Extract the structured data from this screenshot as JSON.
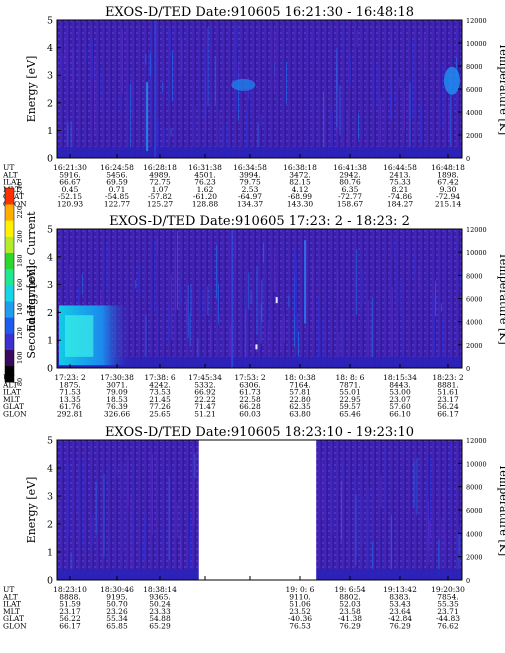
{
  "colorbar": {
    "label": "Second Harmonic Current",
    "ticks": [
      "240",
      "220",
      "200",
      "180",
      "160",
      "140",
      "120",
      "100",
      "80"
    ],
    "colors": [
      "#000000",
      "#3a0a5e",
      "#3d2fd0",
      "#1d5cf0",
      "#1f9ef0",
      "#15d6e6",
      "#1fe890",
      "#2cd82c",
      "#b4ec28",
      "#fff000",
      "#ffae00",
      "#ff3000"
    ]
  },
  "chart_data": [
    {
      "type": "heatmap",
      "title": "EXOS-D/TED   Date:910605   16:21:30 - 16:48:18",
      "ylabel": "Energy [eV]",
      "y2label": "Temperature [K]",
      "ylim": [
        0,
        5
      ],
      "y2lim": [
        0,
        12000
      ],
      "yticks": [
        "0",
        "1",
        "2",
        "3",
        "4",
        "5"
      ],
      "y2ticks": [
        "0",
        "2000",
        "4000",
        "6000",
        "8000",
        "10000",
        "12000"
      ],
      "table": {
        "rows": [
          "UT",
          "ALT",
          "ILAT",
          "MLT",
          "GLAT",
          "GLON"
        ],
        "columns": [
          [
            "16:21:30",
            "5916.",
            "66.67",
            "0.45",
            "-52.15",
            "120.93"
          ],
          [
            "16:24:58",
            "5456.",
            "69.59",
            "0.71",
            "-54.85",
            "122.77"
          ],
          [
            "16:28:18",
            "4989.",
            "72.75",
            "1.07",
            "-57.82",
            "125.27"
          ],
          [
            "16:31:38",
            "4501.",
            "76.23",
            "1.62",
            "-61.20",
            "128.88"
          ],
          [
            "16:34:58",
            "3994.",
            "79.75",
            "2.53",
            "-64.97",
            "134.37"
          ],
          [
            "16:38:18",
            "3472.",
            "82.15",
            "4.12",
            "-68.99",
            "143.30"
          ],
          [
            "16:41:38",
            "2942.",
            "80.76",
            "6.35",
            "-72.77",
            "158.67"
          ],
          [
            "16:44:58",
            "2413.",
            "75.33",
            "8.21",
            "-74.86",
            "184.27"
          ],
          [
            "16:48:18",
            "1898.",
            "67.42",
            "9.30",
            "-72.94",
            "215.14"
          ]
        ]
      }
    },
    {
      "type": "heatmap",
      "title": "EXOS-D/TED   Date:910605   17:23: 2 - 18:23: 2",
      "ylabel": "Energy [eV]",
      "y2label": "Temperature [K]",
      "ylim": [
        0,
        5
      ],
      "y2lim": [
        0,
        12000
      ],
      "yticks": [
        "0",
        "1",
        "2",
        "3",
        "4",
        "5"
      ],
      "y2ticks": [
        "0",
        "2000",
        "4000",
        "6000",
        "8000",
        "10000",
        "12000"
      ],
      "table": {
        "rows": [
          "UT",
          "ALT",
          "ILAT",
          "MLT",
          "GLAT",
          "GLON"
        ],
        "columns": [
          [
            "17:23: 2",
            "1875.",
            "71.53",
            "13.35",
            "61.76",
            "292.81"
          ],
          [
            "17:30:38",
            "3071.",
            "79.09",
            "18.53",
            "76.39",
            "326.66"
          ],
          [
            "17:38: 6",
            "4242.",
            "73.53",
            "21.45",
            "77.26",
            "25.65"
          ],
          [
            "17:45:34",
            "5332.",
            "66.92",
            "22.22",
            "71.47",
            "51.21"
          ],
          [
            "17:53: 2",
            "6306.",
            "61.73",
            "22.58",
            "66.28",
            "60.03"
          ],
          [
            "18: 0:38",
            "7164.",
            "57.81",
            "22.80",
            "62.35",
            "63.80"
          ],
          [
            "18: 8: 6",
            "7871.",
            "55.01",
            "22.95",
            "59.57",
            "65.46"
          ],
          [
            "18:15:34",
            "8443.",
            "53.00",
            "23.07",
            "57.60",
            "66.10"
          ],
          [
            "18:23: 2",
            "8881.",
            "51.61",
            "23.17",
            "56.24",
            "66.17"
          ]
        ]
      }
    },
    {
      "type": "heatmap",
      "title": "EXOS-D/TED   Date:910605   18:23:10 - 19:23:10",
      "ylabel": "Energy [eV]",
      "y2label": "Temperature [K]",
      "ylim": [
        0,
        5
      ],
      "y2lim": [
        0,
        12000
      ],
      "yticks": [
        "0",
        "1",
        "2",
        "3",
        "4",
        "5"
      ],
      "y2ticks": [
        "0",
        "2000",
        "4000",
        "6000",
        "8000",
        "10000",
        "12000"
      ],
      "gap": [
        0.35,
        0.64
      ],
      "table": {
        "rows": [
          "UT",
          "ALT",
          "ILAT",
          "MLT",
          "GLAT",
          "GLON"
        ],
        "columns": [
          [
            "18:23:10",
            "8888.",
            "51.59",
            "23.17",
            "56.22",
            "66.17"
          ],
          [
            "18:30:46",
            "9195.",
            "50.70",
            "23.26",
            "55.34",
            "65.85"
          ],
          [
            "18:38:14",
            "9365.",
            "50.24",
            "23.33",
            "54.88",
            "65.29"
          ],
          [
            "",
            "",
            "",
            "",
            "",
            ""
          ],
          [
            "",
            "",
            "",
            "",
            "",
            ""
          ],
          [
            "19: 0: 6",
            "9110.",
            "51.06",
            "23.52",
            "-40.36",
            "76.53"
          ],
          [
            "19: 6:54",
            "8802.",
            "52.03",
            "23.58",
            "-41.38",
            "76.29"
          ],
          [
            "19:13:42",
            "8383.",
            "53.43",
            "23.64",
            "-42.84",
            "76.29"
          ],
          [
            "19:20:30",
            "7854.",
            "55.35",
            "23.71",
            "-44.83",
            "76.62"
          ]
        ]
      }
    }
  ]
}
